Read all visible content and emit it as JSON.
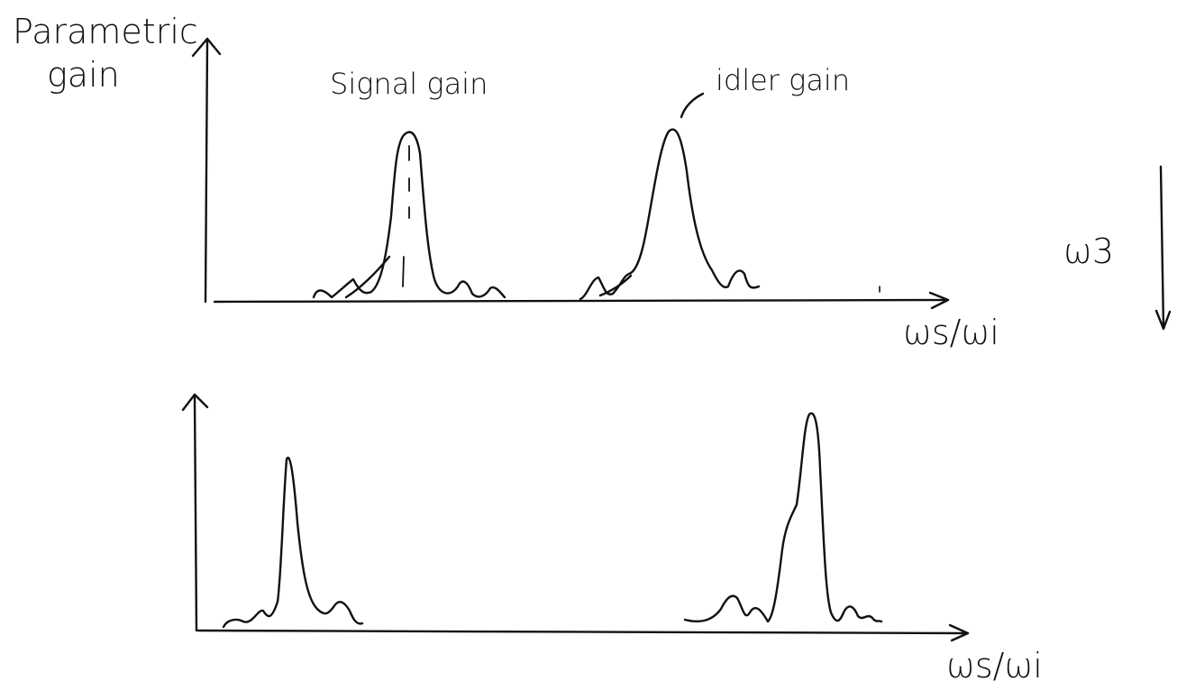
{
  "top_panel": {
    "y_axis_label": [
      "Parametric",
      "gain"
    ],
    "peak_labels": [
      "Signal gain",
      "idler gain"
    ],
    "x_axis_label": "ωs/ωi"
  },
  "side_label": "ω3",
  "bottom_panel": {
    "x_axis_label": "ωs/ωi"
  }
}
